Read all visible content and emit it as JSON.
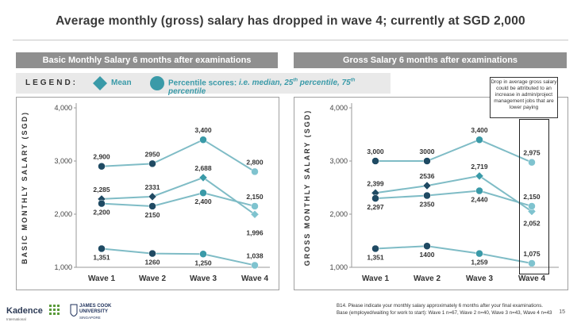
{
  "title": "Average monthly (gross) salary has dropped in wave 4; currently at SGD 2,000",
  "watermark": "",
  "panels": {
    "left_header": "Basic Monthly Salary 6 months after examinations",
    "right_header": "Gross Salary 6 months after examinations"
  },
  "legend": {
    "title": "LEGEND:",
    "mean_label": "Mean",
    "percentile_label": "Percentile scores:",
    "percentile_detail_a": "i.e. median, 25",
    "sup_a": "th",
    "percentile_detail_b": " percentile, 75",
    "sup_b": "th",
    "percentile_detail_c": " percentile"
  },
  "callout": "Drop in average gross salary could be attributed to an increase in admin/project management jobs that are lower paying",
  "footer": {
    "note_line1": "B14. Please indicate your monthly salary approximately 6 months after your final examinations.",
    "note_line2": "Base (employed/waiting for work to start): Wave 1 n=67, Wave 2 n=40, Wave 3 n=43, Wave 4 n=43",
    "page": "15",
    "logo1": "Kadence",
    "logo1_sub": "International",
    "logo2_line1": "JAMES COOK",
    "logo2_line2": "UNIVERSITY",
    "logo2_line3": "SINGAPORE"
  },
  "colors": {
    "percentile": "#3a9aa8",
    "mean": "#3a9aa8",
    "dark": "#1f4a63",
    "line": "#7fbcc6",
    "axis": "#999999"
  },
  "chart_data": [
    {
      "type": "line",
      "title": "Basic Monthly Salary 6 months after examinations",
      "ylabel": "BASIC MONTHLY SALARY (SGD)",
      "xlabel": "",
      "categories": [
        "Wave 1",
        "Wave 2",
        "Wave 3",
        "Wave 4"
      ],
      "ylim": [
        1000,
        4000
      ],
      "yticks": [
        "1,000",
        "2,000",
        "3,000",
        "4,000"
      ],
      "grid": false,
      "series": [
        {
          "role": "75th percentile",
          "marker": "circle",
          "values": [
            2900,
            2950,
            3400,
            2800
          ],
          "labels": [
            "2,900",
            "2950",
            "3,400",
            "2,800"
          ]
        },
        {
          "role": "mean",
          "marker": "diamond",
          "values": [
            2285,
            2331,
            2688,
            1996
          ],
          "labels": [
            "2,285",
            "2331",
            "2,688",
            "1,996"
          ]
        },
        {
          "role": "median",
          "marker": "circle",
          "values": [
            2200,
            2150,
            2400,
            2150
          ],
          "labels": [
            "2,200",
            "2150",
            "2,400",
            "2,150"
          ]
        },
        {
          "role": "25th percentile",
          "marker": "circle",
          "values": [
            1351,
            1260,
            1250,
            1038
          ],
          "labels": [
            "1,351",
            "1260",
            "1,250",
            "1,038"
          ]
        }
      ]
    },
    {
      "type": "line",
      "title": "Gross Salary 6 months after examinations",
      "ylabel": "GROSS MONTHLY SALARY (SGD)",
      "xlabel": "",
      "categories": [
        "Wave 1",
        "Wave 2",
        "Wave 3",
        "Wave 4"
      ],
      "ylim": [
        1000,
        4000
      ],
      "yticks": [
        "1,000",
        "2,000",
        "3,000",
        "4,000"
      ],
      "grid": false,
      "series": [
        {
          "role": "75th percentile",
          "marker": "circle",
          "values": [
            3000,
            3000,
            3400,
            2975
          ],
          "labels": [
            "3,000",
            "3000",
            "3,400",
            "2,975"
          ]
        },
        {
          "role": "mean",
          "marker": "diamond",
          "values": [
            2399,
            2536,
            2719,
            2052
          ],
          "labels": [
            "2,399",
            "2536",
            "2,719",
            "2,052"
          ]
        },
        {
          "role": "median",
          "marker": "circle",
          "values": [
            2297,
            2350,
            2440,
            2150
          ],
          "labels": [
            "2,297",
            "2350",
            "2,440",
            "2,150"
          ]
        },
        {
          "role": "25th percentile",
          "marker": "circle",
          "values": [
            1351,
            1400,
            1259,
            1075
          ],
          "labels": [
            "1,351",
            "1400",
            "1,259",
            "1,075"
          ]
        }
      ]
    }
  ]
}
